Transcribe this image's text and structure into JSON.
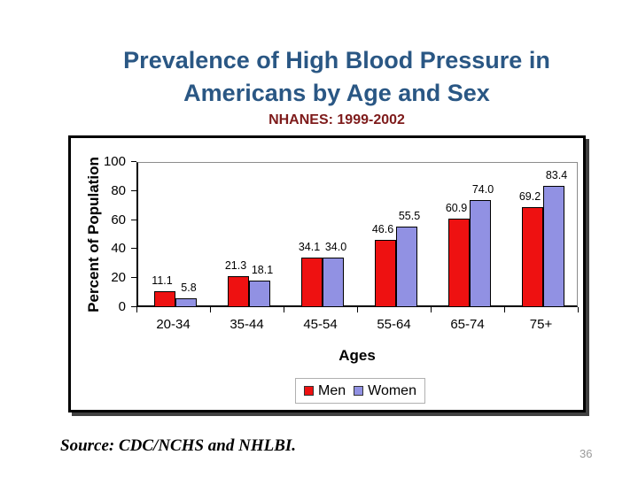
{
  "slide": {
    "title_line1": "Prevalence of High Blood Pressure in",
    "title_line2": "Americans by Age and Sex",
    "subtitle": "NHANES: 1999-2002",
    "source": "Source: CDC/NCHS and NHLBI.",
    "page_number": "36"
  },
  "colors": {
    "title_blue": "#2a5784",
    "subtitle_dark_red": "#7e1b1b",
    "men_red": "#ee1111",
    "women_blue": "#9191e3",
    "axis_black": "#000000",
    "plot_frame_gray": "#8c8c8c",
    "legend_border_gray": "#b0b0b0",
    "page_number_gray": "#9a9a9a"
  },
  "chart_data": {
    "type": "bar",
    "title": "",
    "categories": [
      "20-34",
      "35-44",
      "45-54",
      "55-64",
      "65-74",
      "75+"
    ],
    "series": [
      {
        "name": "Men",
        "color": "#ee1111",
        "values": [
          11.1,
          21.3,
          34.1,
          46.6,
          60.9,
          69.2
        ],
        "labels": [
          "11.1",
          "21.3",
          "34.1",
          "46.6",
          "60.9",
          "69.2"
        ]
      },
      {
        "name": "Women",
        "color": "#9191e3",
        "values": [
          5.8,
          18.1,
          34.0,
          55.5,
          74.0,
          83.4
        ],
        "labels": [
          "5.8",
          "18.1",
          "34.0",
          "55.5",
          "74.0",
          "83.4"
        ]
      }
    ],
    "xlabel": "Ages",
    "ylabel": "Percent of Population",
    "ylim": [
      0,
      100
    ],
    "yticks": [
      0,
      20,
      40,
      60,
      80,
      100
    ],
    "grid": false,
    "data_labels": true,
    "legend_position": "bottom-center",
    "legend_entries": [
      "Men",
      "Women"
    ]
  }
}
